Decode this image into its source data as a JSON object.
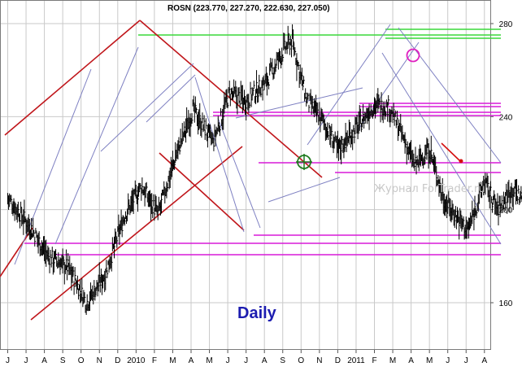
{
  "chart_data": {
    "type": "candlestick",
    "title": "ROSN (223.770, 227.270, 222.630, 227.050)",
    "annotation": "Daily",
    "watermark": "Журнал ForTrader.ru",
    "y_ticks": [
      160,
      200,
      240,
      280
    ],
    "ylim": [
      150,
      285
    ],
    "x_labels": [
      "J",
      "J",
      "A",
      "S",
      "O",
      "N",
      "D",
      "2010",
      "F",
      "M",
      "A",
      "M",
      "J",
      "J",
      "A",
      "S",
      "O",
      "N",
      "D",
      "2011",
      "F",
      "M",
      "A",
      "M",
      "J",
      "J",
      "A"
    ],
    "grid": true,
    "colors": {
      "price": "#000000",
      "trendline_red": "#c0161b",
      "channel_blue": "#7e80c2",
      "support_magenta": "#d81ad8",
      "resistance_green": "#3ad83a",
      "marker_green": "#1f7a1f",
      "marker_pink": "#e020c0",
      "projection_red": "#d41010",
      "grid": "#c9c9c9"
    },
    "price_path": [
      [
        0,
        205
      ],
      [
        1.2,
        193
      ],
      [
        2.2,
        180
      ],
      [
        3.3,
        175
      ],
      [
        4.3,
        160
      ],
      [
        5.3,
        172
      ],
      [
        6.4,
        198
      ],
      [
        7.3,
        210
      ],
      [
        8.2,
        198
      ],
      [
        9.2,
        224
      ],
      [
        10.1,
        243
      ],
      [
        11.2,
        229
      ],
      [
        12.1,
        250
      ],
      [
        13.0,
        247
      ],
      [
        14.1,
        255
      ],
      [
        15.0,
        268
      ],
      [
        15.5,
        273
      ],
      [
        16.3,
        247
      ],
      [
        17.2,
        238
      ],
      [
        18.0,
        226
      ],
      [
        19.0,
        235
      ],
      [
        20.0,
        245
      ],
      [
        20.8,
        244
      ],
      [
        21.5,
        232
      ],
      [
        22.2,
        219
      ],
      [
        23.0,
        226
      ],
      [
        23.8,
        204
      ],
      [
        24.4,
        198
      ],
      [
        25.1,
        191
      ],
      [
        26.0,
        212
      ],
      [
        26.7,
        200
      ],
      [
        27.5,
        209
      ],
      [
        28.3,
        203
      ],
      [
        29.0,
        198
      ],
      [
        29.8,
        212
      ],
      [
        30.5,
        211
      ],
      [
        31.3,
        222
      ],
      [
        31.9,
        216
      ],
      [
        32.8,
        221
      ],
      [
        33.5,
        224
      ],
      [
        34.3,
        221
      ],
      [
        35.2,
        220
      ],
      [
        36.5,
        227
      ],
      [
        37.6,
        232
      ],
      [
        38.6,
        245
      ],
      [
        39.6,
        259
      ],
      [
        40.6,
        272
      ],
      [
        41.2,
        276
      ],
      [
        41.9,
        267
      ],
      [
        42.6,
        270
      ],
      [
        43.3,
        272
      ],
      [
        44.0,
        262
      ],
      [
        44.9,
        252
      ],
      [
        45.5,
        240
      ],
      [
        46.2,
        233
      ],
      [
        46.7,
        228
      ]
    ]
  }
}
